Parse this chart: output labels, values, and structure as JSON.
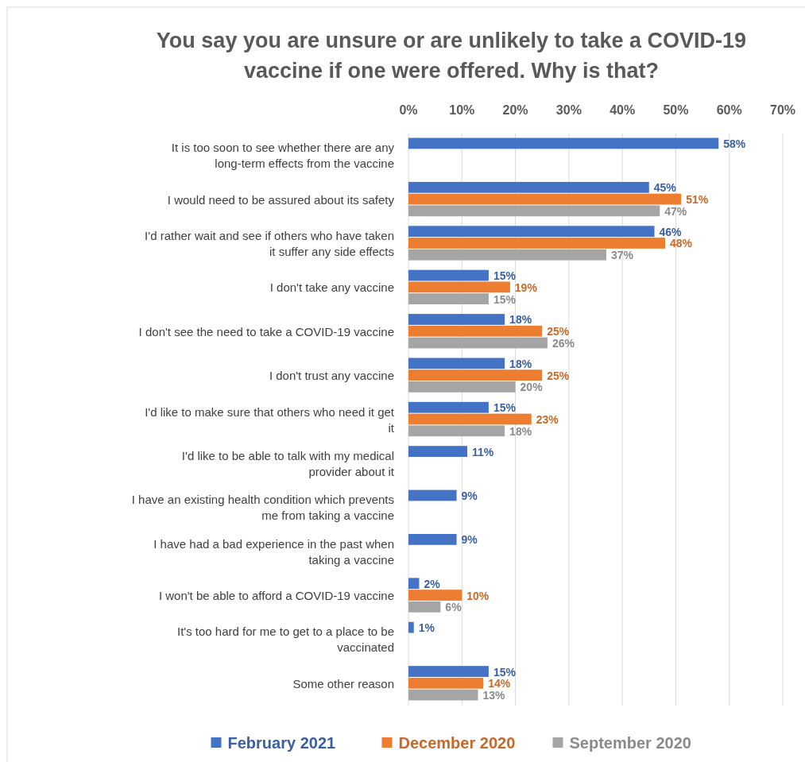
{
  "chart_data": {
    "type": "bar",
    "orientation": "horizontal",
    "title": "You say you are unsure or are unlikely to take a COVID-19 vaccine if one were offered. Why is that?",
    "categories": [
      "It is too soon to see whether there are any long-term effects from the vaccine",
      "I would need to be assured about its safety",
      "I'd rather wait and see if others who have taken it suffer any side effects",
      "I don't take any vaccine",
      "I don't see the need to take a COVID-19 vaccine",
      "I don't trust any vaccine",
      "I'd like to make sure that others who need it get it",
      "I'd like to be able to talk with my medical provider about it",
      "I have an existing health condition which prevents me from taking a vaccine",
      "I have had a bad experience in the past when taking a vaccine",
      "I won't be able to afford a COVID-19 vaccine",
      "It's too hard for me to get to a place to be vaccinated",
      "Some other reason"
    ],
    "series": [
      {
        "name": "February 2021",
        "color": "#4472c4",
        "values": [
          58,
          45,
          46,
          15,
          18,
          18,
          15,
          11,
          9,
          9,
          2,
          1,
          15
        ],
        "value_labels": [
          "58%",
          "45%",
          "46%",
          "15%",
          "18%",
          "18%",
          "15%",
          "11%",
          "9%",
          "9%",
          "2%",
          "1%",
          "15%"
        ]
      },
      {
        "name": "December 2020",
        "color": "#ed7d31",
        "values": [
          null,
          51,
          48,
          19,
          25,
          25,
          23,
          null,
          null,
          null,
          10,
          null,
          14
        ],
        "value_labels": [
          null,
          "51%",
          "48%",
          "19%",
          "25%",
          "25%",
          "23%",
          null,
          null,
          null,
          "10%",
          null,
          "14%"
        ]
      },
      {
        "name": "September 2020",
        "color": "#a5a5a5",
        "values": [
          null,
          47,
          37,
          15,
          26,
          20,
          18,
          null,
          null,
          null,
          6,
          null,
          13
        ],
        "value_labels": [
          null,
          "47%",
          "37%",
          "15%",
          "26%",
          "20%",
          "18%",
          null,
          null,
          null,
          "6%",
          null,
          "13%"
        ]
      }
    ],
    "xlim": [
      0,
      70
    ],
    "xticks": [
      {
        "value": 0,
        "label": "0%"
      },
      {
        "value": 10,
        "label": "10%"
      },
      {
        "value": 20,
        "label": "20%"
      },
      {
        "value": 30,
        "label": "30%"
      },
      {
        "value": 40,
        "label": "40%"
      },
      {
        "value": 50,
        "label": "50%"
      },
      {
        "value": 60,
        "label": "60%"
      },
      {
        "value": 70,
        "label": "70%"
      }
    ],
    "grid": "x",
    "legend": "bottom"
  }
}
